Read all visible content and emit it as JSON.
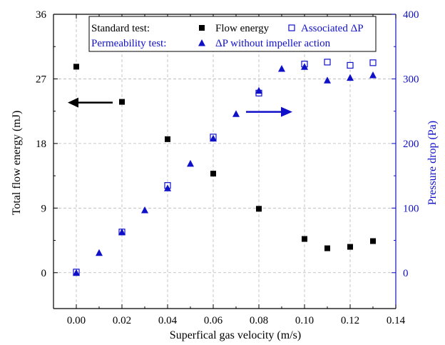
{
  "chart_data": {
    "type": "scatter",
    "xlabel": "Superfical gas velocity (m/s)",
    "ylabel_left": "Total flow energy (mJ)",
    "ylabel_right": "Pressure drop (Pa)",
    "xlim": [
      -0.01,
      0.14
    ],
    "ylim_left": [
      -5,
      36
    ],
    "ylim_right": [
      -55.56,
      400
    ],
    "x_ticks": [
      "0.00",
      "0.02",
      "0.04",
      "0.06",
      "0.08",
      "0.10",
      "0.12",
      "0.14"
    ],
    "y_left_ticks": [
      "0",
      "9",
      "18",
      "27",
      "36"
    ],
    "y_right_ticks": [
      "0",
      "100",
      "200",
      "300",
      "400"
    ],
    "grid": true,
    "legend": {
      "position": "top",
      "rows": [
        {
          "label": "Standard test:",
          "color": "#000000",
          "entries": [
            {
              "marker": "filled-square",
              "text": "Flow energy"
            },
            {
              "marker": "open-square",
              "text": "Associated ΔP"
            }
          ]
        },
        {
          "label": "Permeability test:",
          "color": "#1010c8",
          "entries": [
            {
              "marker": "filled-triangle",
              "text": "ΔP without impeller action"
            }
          ]
        }
      ]
    },
    "series": [
      {
        "name": "Flow energy",
        "axis": "left",
        "marker": "filled-square",
        "color": "#000000",
        "x": [
          0.0,
          0.02,
          0.04,
          0.06,
          0.08,
          0.1,
          0.11,
          0.12,
          0.13
        ],
        "y": [
          28.7,
          23.8,
          18.6,
          13.8,
          8.9,
          4.7,
          3.4,
          3.6,
          4.4
        ]
      },
      {
        "name": "Associated ΔP",
        "axis": "right",
        "marker": "open-square",
        "color": "#1010c8",
        "x": [
          0.0,
          0.02,
          0.04,
          0.06,
          0.08,
          0.1,
          0.11,
          0.12,
          0.13
        ],
        "y": [
          1,
          63,
          135,
          210,
          278,
          323,
          326,
          321,
          325
        ]
      },
      {
        "name": "ΔP without impeller action",
        "axis": "right",
        "marker": "filled-triangle",
        "color": "#1010c8",
        "x": [
          0.0,
          0.01,
          0.02,
          0.03,
          0.04,
          0.05,
          0.06,
          0.07,
          0.08,
          0.09,
          0.1,
          0.11,
          0.12,
          0.13
        ],
        "y": [
          0,
          31,
          63,
          97,
          131,
          169,
          208,
          246,
          282,
          316,
          319,
          298,
          302,
          306
        ]
      }
    ],
    "annotations": [
      {
        "type": "arrow",
        "direction": "left",
        "color": "#000000",
        "meaning": "left axis"
      },
      {
        "type": "arrow",
        "direction": "right",
        "color": "#1010c8",
        "meaning": "right axis"
      }
    ]
  }
}
